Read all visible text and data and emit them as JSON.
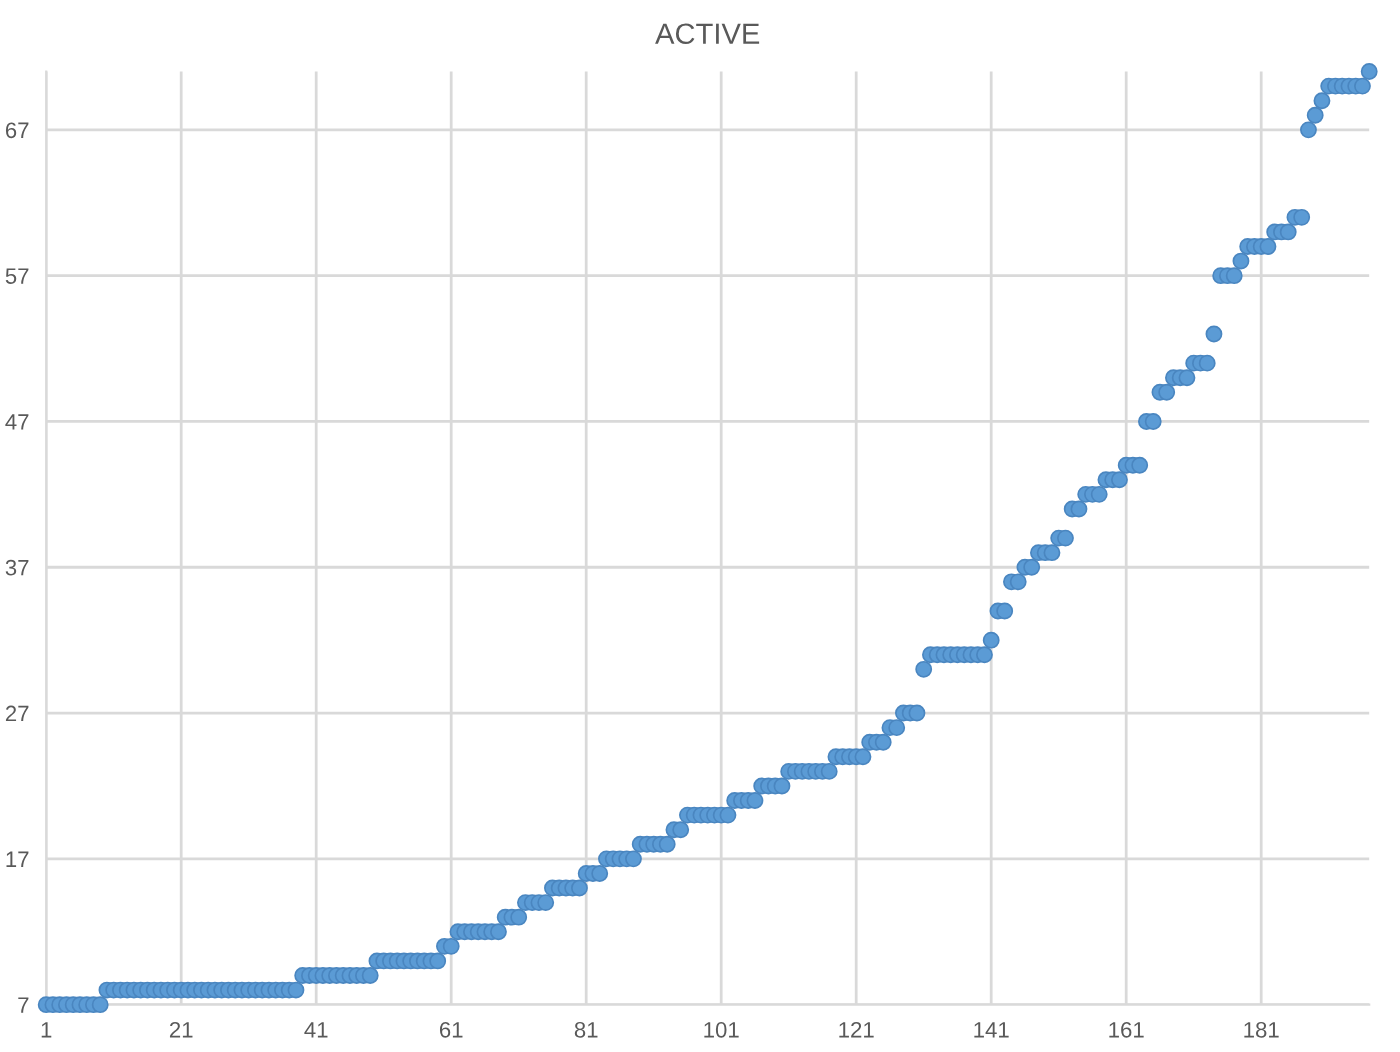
{
  "chart_data": {
    "type": "scatter",
    "title": "ACTIVE",
    "x": [
      1,
      2,
      3,
      4,
      5,
      6,
      7,
      8,
      9,
      10,
      11,
      12,
      13,
      14,
      15,
      16,
      17,
      18,
      19,
      20,
      21,
      22,
      23,
      24,
      25,
      26,
      27,
      28,
      29,
      30,
      31,
      32,
      33,
      34,
      35,
      36,
      37,
      38,
      39,
      40,
      41,
      42,
      43,
      44,
      45,
      46,
      47,
      48,
      49,
      50,
      51,
      52,
      53,
      54,
      55,
      56,
      57,
      58,
      59,
      60,
      61,
      62,
      63,
      64,
      65,
      66,
      67,
      68,
      69,
      70,
      71,
      72,
      73,
      74,
      75,
      76,
      77,
      78,
      79,
      80,
      81,
      82,
      83,
      84,
      85,
      86,
      87,
      88,
      89,
      90,
      91,
      92,
      93,
      94,
      95,
      96,
      97,
      98,
      99,
      100,
      101,
      102,
      103,
      104,
      105,
      106,
      107,
      108,
      109,
      110,
      111,
      112,
      113,
      114,
      115,
      116,
      117,
      118,
      119,
      120,
      121,
      122,
      123,
      124,
      125,
      126,
      127,
      128,
      129,
      130,
      131,
      132,
      133,
      134,
      135,
      136,
      137,
      138,
      139,
      140,
      141,
      142,
      143,
      144,
      145,
      146,
      147,
      148,
      149,
      150,
      151,
      152,
      153,
      154,
      155,
      156,
      157,
      158,
      159,
      160,
      161,
      162,
      163,
      164,
      165,
      166,
      167,
      168,
      169,
      170,
      171,
      172,
      173,
      174,
      175,
      176,
      177,
      178,
      179,
      180,
      181,
      182,
      183,
      184,
      185,
      186,
      187,
      188,
      189,
      190,
      191,
      192,
      193,
      194,
      195,
      196,
      197
    ],
    "series": [
      {
        "color": "#5b9bd5",
        "values": [
          7,
          7,
          7,
          7,
          7,
          7,
          7,
          7,
          7,
          8,
          8,
          8,
          8,
          8,
          8,
          8,
          8,
          8,
          8,
          8,
          8,
          8,
          8,
          8,
          8,
          8,
          8,
          8,
          8,
          8,
          8,
          8,
          8,
          8,
          8,
          8,
          8,
          8,
          9,
          9,
          9,
          9,
          9,
          9,
          9,
          9,
          9,
          9,
          9,
          10,
          10,
          10,
          10,
          10,
          10,
          10,
          10,
          10,
          10,
          11,
          11,
          12,
          12,
          12,
          12,
          12,
          12,
          12,
          13,
          13,
          13,
          14,
          14,
          14,
          14,
          15,
          15,
          15,
          15,
          15,
          16,
          16,
          16,
          17,
          17,
          17,
          17,
          17,
          18,
          18,
          18,
          18,
          18,
          19,
          19,
          20,
          20,
          20,
          20,
          20,
          20,
          20,
          21,
          21,
          21,
          21,
          22,
          22,
          22,
          22,
          23,
          23,
          23,
          23,
          23,
          23,
          23,
          24,
          24,
          24,
          24,
          24,
          25,
          25,
          25,
          26,
          26,
          27,
          27,
          27,
          30,
          31,
          31,
          31,
          31,
          31,
          31,
          31,
          31,
          31,
          32,
          34,
          34,
          36,
          36,
          37,
          37,
          38,
          38,
          38,
          39,
          39,
          41,
          41,
          42,
          42,
          42,
          43,
          43,
          43,
          44,
          44,
          44,
          47,
          47,
          49,
          49,
          50,
          50,
          50,
          51,
          51,
          51,
          53,
          57,
          57,
          57,
          58,
          59,
          59,
          59,
          59,
          60,
          60,
          60,
          61,
          61,
          67,
          68,
          69,
          70,
          70,
          70,
          70,
          70,
          70,
          71
        ]
      }
    ],
    "xlim": [
      1,
      197
    ],
    "xticks": [
      1,
      21,
      41,
      61,
      81,
      101,
      121,
      141,
      161,
      181
    ],
    "ylim": [
      7,
      71
    ],
    "yticks": [
      7,
      17,
      27,
      37,
      47,
      57,
      67
    ],
    "grid": true,
    "marker": "circle"
  }
}
